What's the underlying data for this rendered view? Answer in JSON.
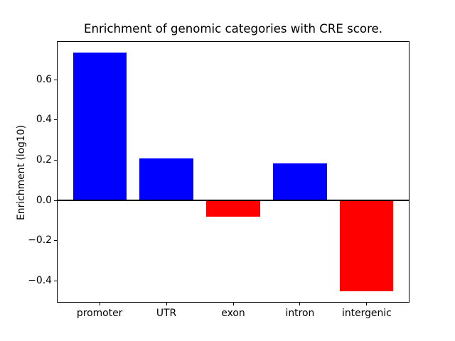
{
  "figure": {
    "background": "#ffffff",
    "text_color": "#000000",
    "spine_color": "#000000"
  },
  "chart_data": {
    "type": "bar",
    "title": "Enrichment of genomic categories with CRE score.",
    "xlabel": "",
    "ylabel": "Enrichment (log10)",
    "categories": [
      "promoter",
      "UTR",
      "exon",
      "intron",
      "intergenic"
    ],
    "values": [
      0.735,
      0.21,
      -0.08,
      0.185,
      -0.45
    ],
    "colors": [
      "#0000ff",
      "#0000ff",
      "#ff0000",
      "#0000ff",
      "#ff0000"
    ],
    "positive_color": "#0000ff",
    "negative_color": "#ff0000",
    "ylim": [
      -0.508,
      0.791
    ],
    "xlim": [
      -0.64,
      4.64
    ],
    "yticks": [
      0.6,
      0.4,
      0.2,
      0.0,
      -0.2,
      -0.4
    ],
    "ytick_labels": [
      "0.6",
      "0.4",
      "0.2",
      "0.0",
      "−0.2",
      "−0.4"
    ],
    "bar_width_fraction": 0.8,
    "zero_line": true,
    "grid": false,
    "legend": null
  }
}
